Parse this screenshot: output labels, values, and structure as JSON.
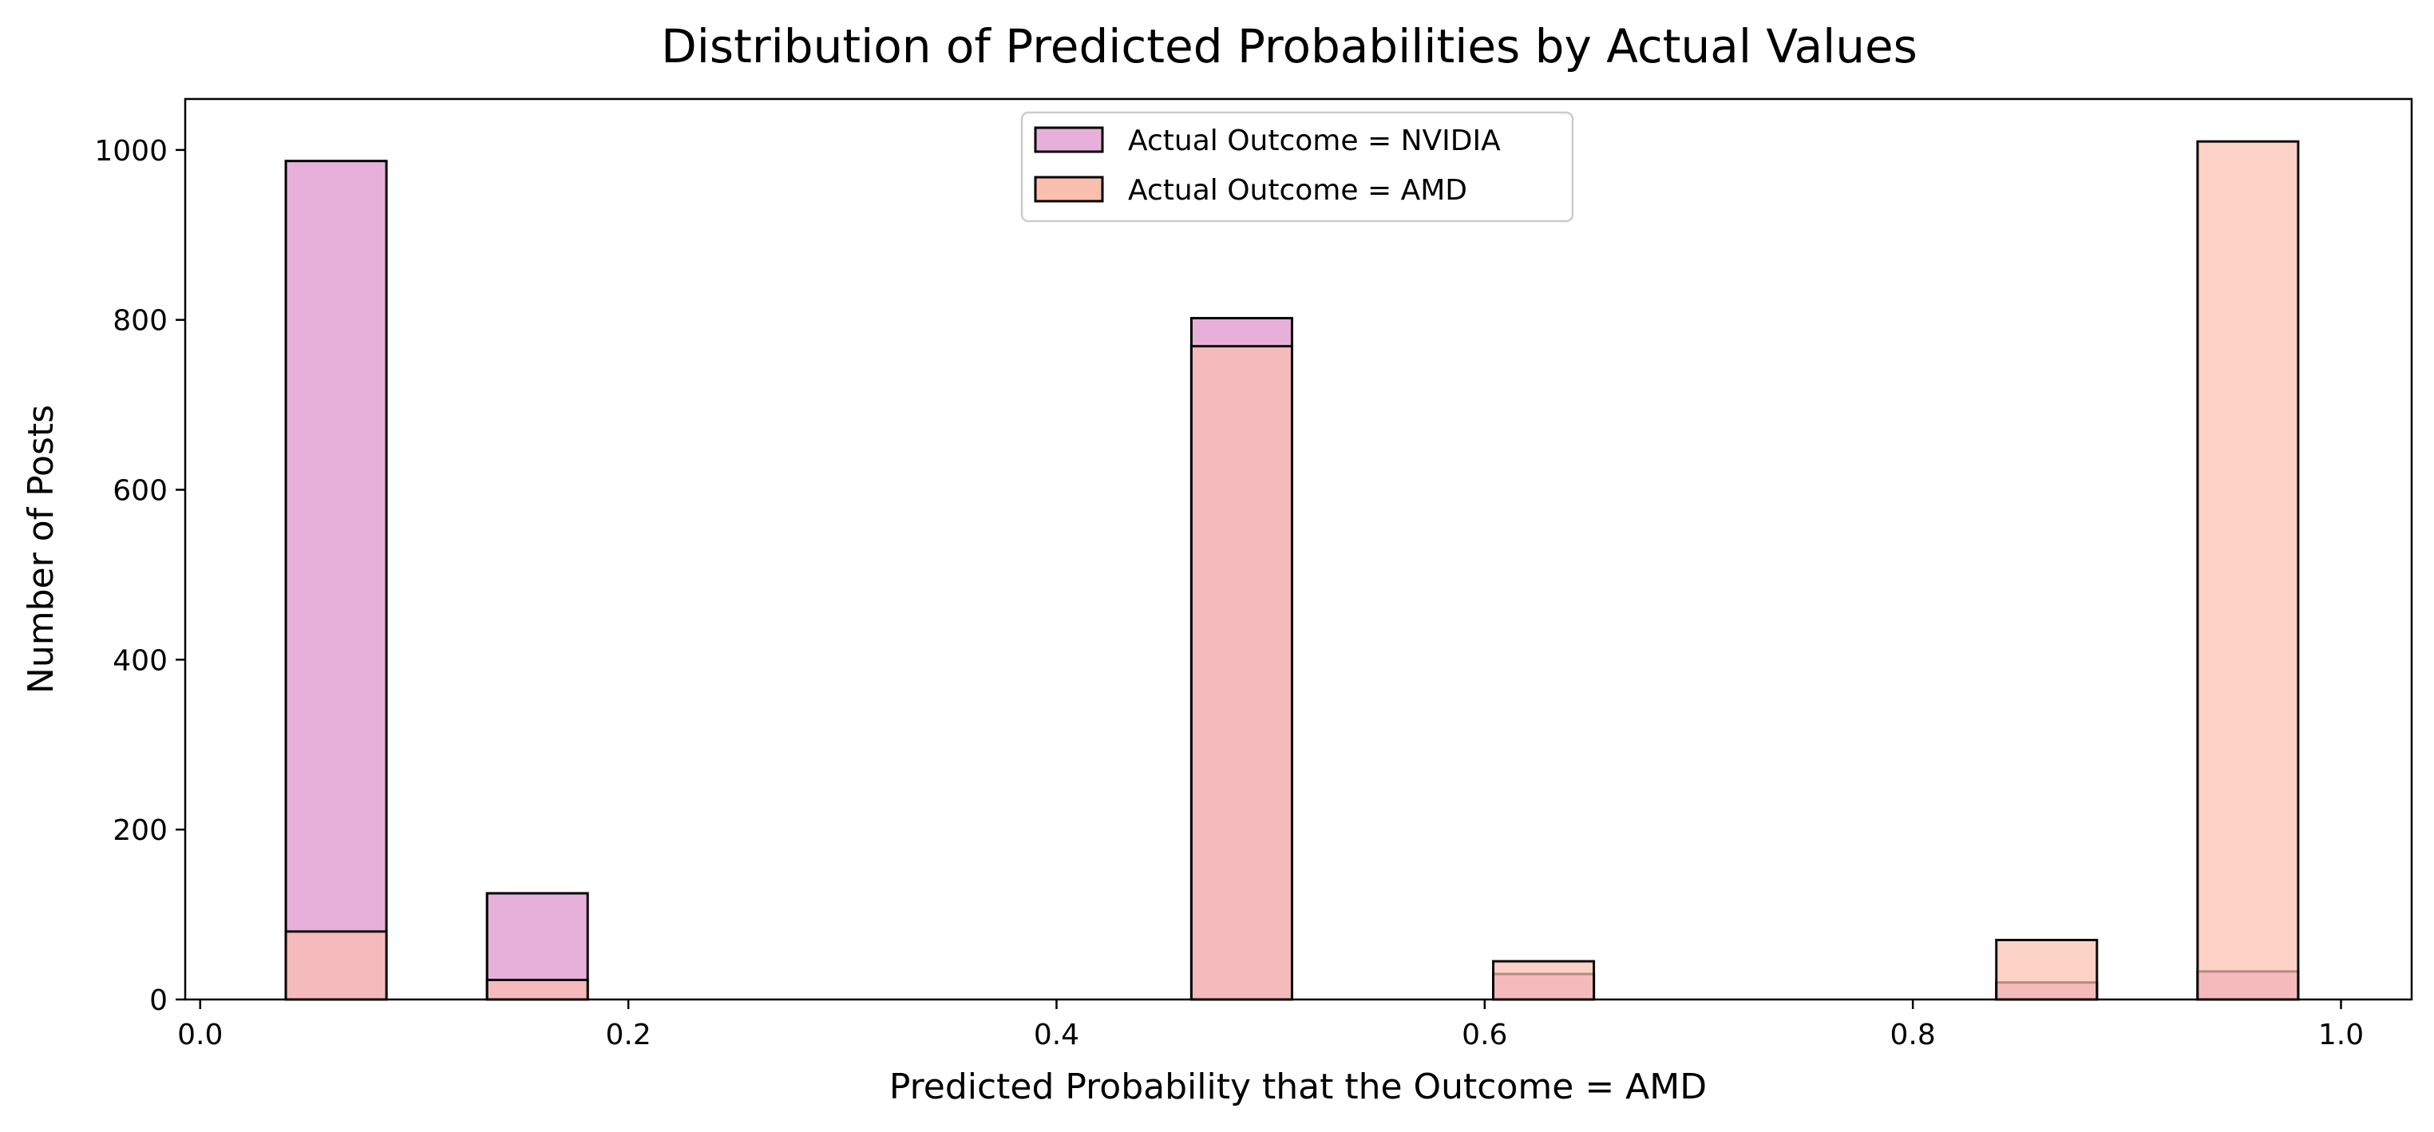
{
  "chart_data": {
    "type": "bar",
    "title": "Distribution of Predicted Probabilities by Actual Values",
    "xlabel": "Predicted Probability that the Outcome = AMD",
    "ylabel": "Number of Posts",
    "xlim": [
      -0.007,
      1.033
    ],
    "ylim": [
      0,
      1060
    ],
    "xticks": [
      "0.0",
      "0.2",
      "0.4",
      "0.6",
      "0.8",
      "1.0"
    ],
    "yticks": [
      "0",
      "200",
      "400",
      "600",
      "800",
      "1000"
    ],
    "grid": false,
    "legend_position": "upper center",
    "bin_width": 0.047,
    "bin_starts": [
      0.04,
      0.134,
      0.463,
      0.604,
      0.839,
      0.933
    ],
    "series": [
      {
        "name": "Actual Outcome = NVIDIA",
        "color": "#e7b0da",
        "values": [
          987,
          125,
          802,
          30,
          20,
          33
        ]
      },
      {
        "name": "Actual Outcome = AMD",
        "color": "#fbbfb0",
        "values": [
          80,
          23,
          769,
          45,
          70,
          1010
        ]
      }
    ]
  }
}
